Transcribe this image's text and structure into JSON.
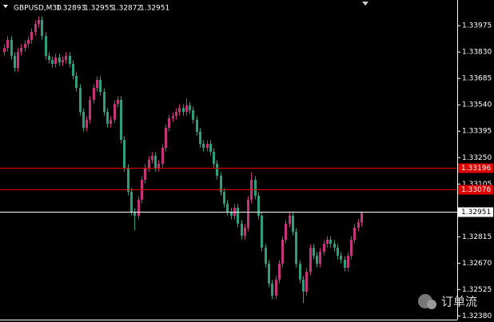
{
  "chart_data": {
    "type": "candlestick",
    "title": "GBPUSD,M30",
    "quote": [
      1.32893,
      1.32955,
      1.32872,
      1.32951
    ],
    "watermark": "订单流",
    "bull_color": "#c8347c",
    "bear_color": "#2f9e7d",
    "ylim": [
      1.3236,
      1.34116
    ],
    "yticks": [
      1.33975,
      {
        "value": 1.3383,
        "label": "1.33830"
      },
      1.33685,
      {
        "value": 1.3354,
        "label": "1.33540"
      },
      1.33395,
      {
        "value": 1.3325,
        "label": "1.33250"
      },
      1.33105,
      1.32815,
      {
        "value": 1.3267,
        "label": "1.32670"
      },
      1.32525,
      {
        "value": 1.3238,
        "label": "1.32380"
      }
    ],
    "levels": [
      {
        "value": 1.33196,
        "color": "#e00000"
      },
      {
        "value": 1.33076,
        "color": "#e00000"
      },
      {
        "value": 1.32951,
        "color": "#ffffff"
      }
    ],
    "candles": [
      [
        1.33831,
        1.33873,
        1.33811,
        1.33853
      ],
      [
        1.33853,
        1.33917,
        1.33833,
        1.33897
      ],
      [
        1.33897,
        1.33917,
        1.33789,
        1.33809
      ],
      [
        1.33809,
        1.33829,
        1.33723,
        1.33743
      ],
      [
        1.33743,
        1.33851,
        1.33723,
        1.33831
      ],
      [
        1.33831,
        1.33873,
        1.33811,
        1.33853
      ],
      [
        1.33853,
        1.33895,
        1.33833,
        1.33875
      ],
      [
        1.33875,
        1.33917,
        1.33855,
        1.33897
      ],
      [
        1.33897,
        1.3396,
        1.33877,
        1.3394
      ],
      [
        1.3394,
        1.34004,
        1.3392,
        1.33984
      ],
      [
        1.33984,
        1.34026,
        1.33964,
        1.34006
      ],
      [
        1.34006,
        1.34026,
        1.33898,
        1.33918
      ],
      [
        1.33918,
        1.33938,
        1.33789,
        1.33809
      ],
      [
        1.33809,
        1.33829,
        1.33767,
        1.33787
      ],
      [
        1.33787,
        1.33807,
        1.33745,
        1.33765
      ],
      [
        1.33765,
        1.3382,
        1.33745,
        1.338
      ],
      [
        1.338,
        1.3382,
        1.33754,
        1.33774
      ],
      [
        1.33774,
        1.33807,
        1.33754,
        1.33787
      ],
      [
        1.33787,
        1.33829,
        1.33767,
        1.33809
      ],
      [
        1.33809,
        1.33829,
        1.33745,
        1.33765
      ],
      [
        1.33765,
        1.33785,
        1.33679,
        1.33699
      ],
      [
        1.33699,
        1.33719,
        1.33613,
        1.33633
      ],
      [
        1.33633,
        1.33653,
        1.33481,
        1.33501
      ],
      [
        1.33501,
        1.33521,
        1.33394,
        1.33414
      ],
      [
        1.33414,
        1.33478,
        1.33394,
        1.33458
      ],
      [
        1.33458,
        1.33587,
        1.33438,
        1.33567
      ],
      [
        1.33567,
        1.33653,
        1.33547,
        1.33633
      ],
      [
        1.33633,
        1.33697,
        1.33613,
        1.33677
      ],
      [
        1.33677,
        1.33697,
        1.33591,
        1.33611
      ],
      [
        1.33611,
        1.33631,
        1.33481,
        1.33501
      ],
      [
        1.33501,
        1.33521,
        1.33416,
        1.33436
      ],
      [
        1.33436,
        1.33478,
        1.33416,
        1.33458
      ],
      [
        1.33458,
        1.33565,
        1.33438,
        1.33545
      ],
      [
        1.33545,
        1.33587,
        1.33525,
        1.33567
      ],
      [
        1.33567,
        1.33587,
        1.33328,
        1.33348
      ],
      [
        1.33348,
        1.33368,
        1.33174,
        1.33194
      ],
      [
        1.33194,
        1.33214,
        1.33042,
        1.33062
      ],
      [
        1.33062,
        1.33082,
        1.32933,
        1.32953
      ],
      [
        1.32953,
        1.32973,
        1.3285,
        1.32931
      ],
      [
        1.32931,
        1.33039,
        1.32911,
        1.33019
      ],
      [
        1.33019,
        1.33148,
        1.32999,
        1.33128
      ],
      [
        1.33128,
        1.33214,
        1.33108,
        1.33194
      ],
      [
        1.33194,
        1.33258,
        1.33174,
        1.33238
      ],
      [
        1.33238,
        1.3328,
        1.33218,
        1.3326
      ],
      [
        1.3326,
        1.3328,
        1.33174,
        1.33194
      ],
      [
        1.33194,
        1.33236,
        1.33174,
        1.33216
      ],
      [
        1.33216,
        1.33324,
        1.33196,
        1.33304
      ],
      [
        1.33304,
        1.33434,
        1.33284,
        1.33414
      ],
      [
        1.33414,
        1.33486,
        1.33394,
        1.33466
      ],
      [
        1.33466,
        1.33499,
        1.33446,
        1.33479
      ],
      [
        1.33479,
        1.33521,
        1.33459,
        1.33501
      ],
      [
        1.33501,
        1.33543,
        1.33481,
        1.33523
      ],
      [
        1.33523,
        1.33543,
        1.33481,
        1.33501
      ],
      [
        1.33501,
        1.33575,
        1.33481,
        1.33536
      ],
      [
        1.33536,
        1.33556,
        1.3349,
        1.3351
      ],
      [
        1.3351,
        1.3353,
        1.33438,
        1.33458
      ],
      [
        1.33458,
        1.33478,
        1.33372,
        1.33392
      ],
      [
        1.33392,
        1.33412,
        1.33306,
        1.33326
      ],
      [
        1.33326,
        1.33346,
        1.33284,
        1.33304
      ],
      [
        1.33304,
        1.33346,
        1.33284,
        1.33326
      ],
      [
        1.33326,
        1.33346,
        1.33262,
        1.33282
      ],
      [
        1.33282,
        1.33302,
        1.33196,
        1.33216
      ],
      [
        1.33216,
        1.33236,
        1.3313,
        1.3315
      ],
      [
        1.3315,
        1.3317,
        1.33042,
        1.33062
      ],
      [
        1.33062,
        1.33082,
        1.32977,
        1.32997
      ],
      [
        1.32997,
        1.33017,
        1.32933,
        1.32953
      ],
      [
        1.32953,
        1.32973,
        1.32911,
        1.32931
      ],
      [
        1.32931,
        1.32995,
        1.32911,
        1.32975
      ],
      [
        1.32975,
        1.32995,
        1.32867,
        1.32887
      ],
      [
        1.32887,
        1.32907,
        1.32801,
        1.32821
      ],
      [
        1.32821,
        1.32885,
        1.32801,
        1.32865
      ],
      [
        1.32865,
        1.33039,
        1.32845,
        1.33019
      ],
      [
        1.33019,
        1.3317,
        1.32999,
        1.33128
      ],
      [
        1.33128,
        1.33148,
        1.3302,
        1.3304
      ],
      [
        1.3304,
        1.3306,
        1.32911,
        1.32931
      ],
      [
        1.32931,
        1.32951,
        1.32735,
        1.32755
      ],
      [
        1.32755,
        1.32775,
        1.32647,
        1.32667
      ],
      [
        1.32667,
        1.32687,
        1.32538,
        1.32558
      ],
      [
        1.32558,
        1.32578,
        1.32472,
        1.32492
      ],
      [
        1.32492,
        1.326,
        1.32472,
        1.3258
      ],
      [
        1.3258,
        1.32687,
        1.3256,
        1.32667
      ],
      [
        1.32667,
        1.32819,
        1.32647,
        1.32799
      ],
      [
        1.32799,
        1.32907,
        1.32779,
        1.32887
      ],
      [
        1.32887,
        1.32951,
        1.32867,
        1.32931
      ],
      [
        1.32931,
        1.32951,
        1.32823,
        1.32843
      ],
      [
        1.32843,
        1.32863,
        1.32647,
        1.32667
      ],
      [
        1.32667,
        1.32687,
        1.3256,
        1.3258
      ],
      [
        1.3258,
        1.326,
        1.3245,
        1.32514
      ],
      [
        1.32514,
        1.32643,
        1.32494,
        1.32623
      ],
      [
        1.32623,
        1.32775,
        1.32603,
        1.32755
      ],
      [
        1.32755,
        1.32775,
        1.32691,
        1.32711
      ],
      [
        1.32711,
        1.32731,
        1.32647,
        1.32667
      ],
      [
        1.32667,
        1.32753,
        1.32647,
        1.32733
      ],
      [
        1.32733,
        1.32797,
        1.32713,
        1.32777
      ],
      [
        1.32777,
        1.32819,
        1.32757,
        1.32799
      ],
      [
        1.32799,
        1.32819,
        1.32757,
        1.32777
      ],
      [
        1.32777,
        1.32797,
        1.32735,
        1.32755
      ],
      [
        1.32755,
        1.32775,
        1.32691,
        1.32711
      ],
      [
        1.32711,
        1.32731,
        1.32669,
        1.32689
      ],
      [
        1.32689,
        1.32709,
        1.32625,
        1.32645
      ],
      [
        1.32645,
        1.32731,
        1.32625,
        1.32711
      ],
      [
        1.32711,
        1.32819,
        1.32691,
        1.32799
      ],
      [
        1.32799,
        1.32885,
        1.32779,
        1.32865
      ],
      [
        1.32865,
        1.32913,
        1.32845,
        1.32893
      ],
      [
        1.32893,
        1.32955,
        1.32872,
        1.32951
      ]
    ]
  }
}
